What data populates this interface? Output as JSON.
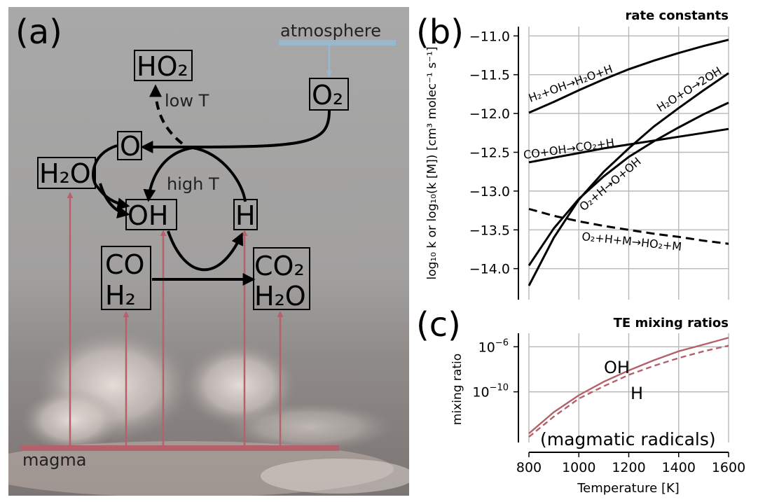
{
  "panel_a": {
    "label": "(a)",
    "atmosphere_label": "atmosphere",
    "magma_label": "magma",
    "low_t_label": "low T",
    "high_t_label": "high T",
    "species": {
      "ho2": "HO₂",
      "o2": "O₂",
      "o": "O",
      "h2o": "H₂O",
      "oh": "OH",
      "h": "H",
      "co": "CO",
      "h2": "H₂",
      "co2": "CO₂",
      "h2o_product": "H₂O"
    },
    "colors": {
      "magma": "#b5616b",
      "atmosphere": "#9ab8cd",
      "arrows": "#000000"
    }
  },
  "panel_b": {
    "label": "(b)",
    "chart_data": {
      "type": "line",
      "title": "rate constants",
      "xlabel": "",
      "ylabel": "log₁₀ k or log₁₀(k [M]) [cm³ molec⁻¹ s⁻¹]",
      "xlim": [
        800,
        1600
      ],
      "ylim": [
        -14.4,
        -10.88
      ],
      "xticks": [
        800,
        1000,
        1200,
        1400,
        1600
      ],
      "yticks": [
        -14.0,
        -13.5,
        -13.0,
        -12.5,
        -12.0,
        -11.5,
        -11.0
      ],
      "ytick_labels": [
        "−14.0",
        "−13.5",
        "−13.0",
        "−12.5",
        "−12.0",
        "−11.5",
        "−11.0"
      ],
      "grid": true,
      "series": [
        {
          "name": "H₂+OH→H₂O+H",
          "style": "solid",
          "x": [
            800,
            900,
            1000,
            1100,
            1200,
            1300,
            1400,
            1500,
            1600
          ],
          "y": [
            -11.99,
            -11.85,
            -11.7,
            -11.56,
            -11.43,
            -11.32,
            -11.22,
            -11.13,
            -11.05
          ]
        },
        {
          "name": "H₂O+O→2OH",
          "style": "solid",
          "x": [
            800,
            900,
            1000,
            1100,
            1200,
            1300,
            1400,
            1500,
            1600
          ],
          "y": [
            -14.22,
            -13.6,
            -13.11,
            -12.75,
            -12.45,
            -12.17,
            -11.93,
            -11.7,
            -11.48
          ]
        },
        {
          "name": "CO+OH→CO₂+H",
          "style": "solid",
          "x": [
            800,
            900,
            1000,
            1100,
            1200,
            1300,
            1400,
            1500,
            1600
          ],
          "y": [
            -12.63,
            -12.57,
            -12.51,
            -12.45,
            -12.4,
            -12.35,
            -12.3,
            -12.25,
            -12.2
          ]
        },
        {
          "name": "O₂+H→O+OH",
          "style": "solid",
          "x": [
            800,
            900,
            1000,
            1100,
            1200,
            1300,
            1400,
            1500,
            1600
          ],
          "y": [
            -13.96,
            -13.48,
            -13.1,
            -12.81,
            -12.56,
            -12.36,
            -12.18,
            -12.01,
            -11.86
          ]
        },
        {
          "name": "O₂+H+M→HO₂+M",
          "style": "dashed",
          "x": [
            800,
            900,
            1000,
            1100,
            1200,
            1300,
            1400,
            1500,
            1600
          ],
          "y": [
            -13.23,
            -13.32,
            -13.39,
            -13.45,
            -13.5,
            -13.55,
            -13.59,
            -13.64,
            -13.68
          ]
        }
      ]
    }
  },
  "panel_c": {
    "label": "(c)",
    "annotation": "(magmatic radicals)",
    "chart_data": {
      "type": "line",
      "title": "TE mixing ratios",
      "xlabel": "Temperature [K]",
      "ylabel": "mixing ratio",
      "xlim": [
        800,
        1600
      ],
      "ylim_log10": [
        -14.5,
        -4.8
      ],
      "xticks": [
        800,
        1000,
        1200,
        1400,
        1600
      ],
      "yticks_log10": [
        -10,
        -6
      ],
      "grid": true,
      "color": "#b5616b",
      "series": [
        {
          "name": "OH",
          "style": "solid",
          "x": [
            800,
            900,
            1000,
            1100,
            1200,
            1300,
            1400,
            1500,
            1600
          ],
          "y_log10": [
            -13.7,
            -11.8,
            -10.3,
            -9.1,
            -8.1,
            -7.2,
            -6.4,
            -5.8,
            -5.2
          ]
        },
        {
          "name": "H",
          "style": "dashed",
          "x": [
            800,
            900,
            1000,
            1100,
            1200,
            1300,
            1400,
            1500,
            1600
          ],
          "y_log10": [
            -14.0,
            -12.2,
            -10.6,
            -9.5,
            -8.5,
            -7.7,
            -7.0,
            -6.4,
            -5.9
          ]
        }
      ]
    }
  }
}
